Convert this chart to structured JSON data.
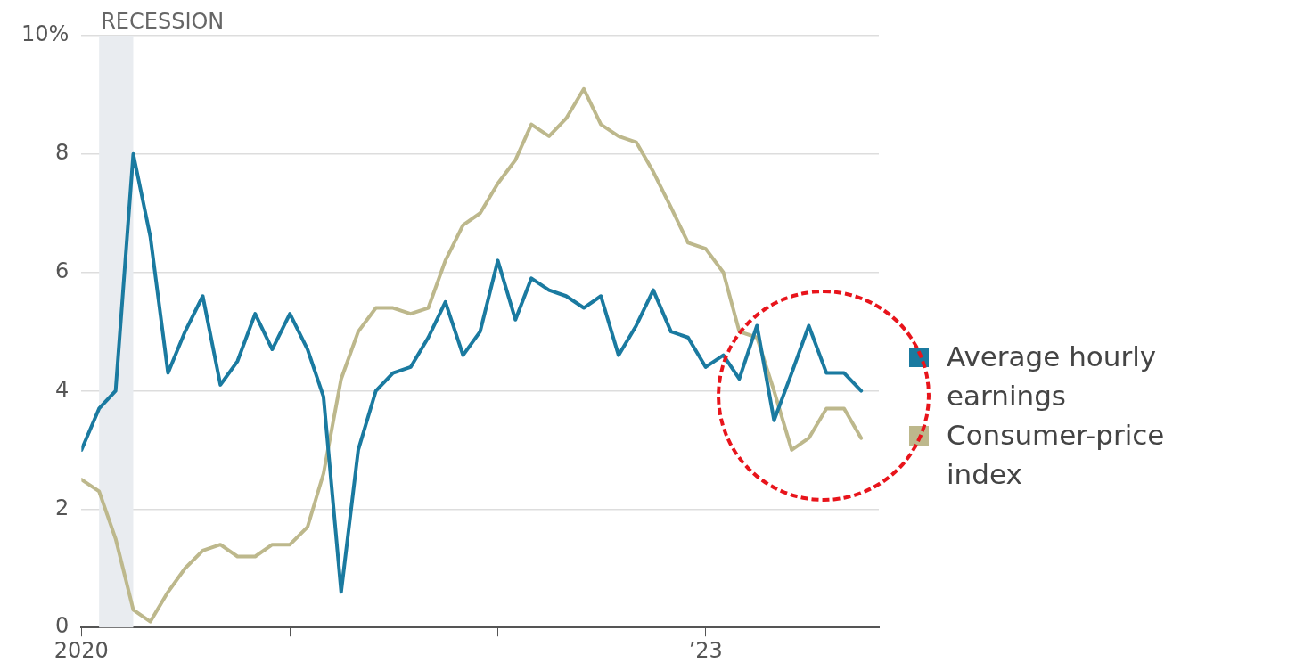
{
  "chart_data": {
    "type": "line",
    "x": [
      "2020-01",
      "2020-02",
      "2020-03",
      "2020-04",
      "2020-05",
      "2020-06",
      "2020-07",
      "2020-08",
      "2020-09",
      "2020-10",
      "2020-11",
      "2020-12",
      "2021-01",
      "2021-02",
      "2021-03",
      "2021-04",
      "2021-05",
      "2021-06",
      "2021-07",
      "2021-08",
      "2021-09",
      "2021-10",
      "2021-11",
      "2021-12",
      "2022-01",
      "2022-02",
      "2022-03",
      "2022-04",
      "2022-05",
      "2022-06",
      "2022-07",
      "2022-08",
      "2022-09",
      "2022-10",
      "2022-11",
      "2022-12",
      "2023-01",
      "2023-02",
      "2023-03",
      "2023-04",
      "2023-05",
      "2023-06",
      "2023-07",
      "2023-08",
      "2023-09",
      "2023-10"
    ],
    "series": [
      {
        "name": "Average hourly earnings",
        "color": "#1a7aa0",
        "values": [
          3.0,
          3.7,
          4.0,
          8.0,
          6.6,
          4.3,
          5.0,
          5.6,
          4.1,
          4.5,
          5.3,
          4.7,
          5.3,
          4.7,
          3.9,
          0.6,
          3.0,
          4.0,
          4.3,
          4.4,
          4.9,
          5.5,
          4.6,
          5.0,
          6.2,
          5.2,
          5.9,
          5.7,
          5.6,
          5.4,
          5.6,
          4.6,
          5.1,
          5.7,
          5.0,
          4.9,
          4.4,
          4.6,
          4.2,
          5.1,
          3.5,
          4.3,
          5.1,
          4.3,
          4.3,
          4.0
        ]
      },
      {
        "name": "Consumer-price index",
        "color": "#bdb88c",
        "values": [
          2.5,
          2.3,
          1.5,
          0.3,
          0.1,
          0.6,
          1.0,
          1.3,
          1.4,
          1.2,
          1.2,
          1.4,
          1.4,
          1.7,
          2.6,
          4.2,
          5.0,
          5.4,
          5.4,
          5.3,
          5.4,
          6.2,
          6.8,
          7.0,
          7.5,
          7.9,
          8.5,
          8.3,
          8.6,
          9.1,
          8.5,
          8.3,
          8.2,
          7.7,
          7.1,
          6.5,
          6.4,
          6.0,
          5.0,
          4.9,
          4.0,
          3.0,
          3.2,
          3.7,
          3.7,
          3.2
        ]
      }
    ],
    "xlim": [
      "2020-01",
      "2023-11"
    ],
    "xticks": [
      {
        "value": "2020-01",
        "label": "2020"
      },
      {
        "value": "2021-01",
        "label": null
      },
      {
        "value": "2022-01",
        "label": null
      },
      {
        "value": "2023-01",
        "label": "’23"
      }
    ],
    "ylim": [
      0,
      10
    ],
    "yticks": [
      0,
      2,
      4,
      6,
      8,
      {
        "value": 10,
        "label": "10%"
      }
    ],
    "bands": [
      {
        "axis": "x",
        "from": "2020-02",
        "to": "2020-04",
        "label": "RECESSION",
        "color": "#e9ecf0"
      }
    ],
    "grid": "y",
    "legend": "right",
    "marker": "none",
    "line_style": "solid"
  }
}
